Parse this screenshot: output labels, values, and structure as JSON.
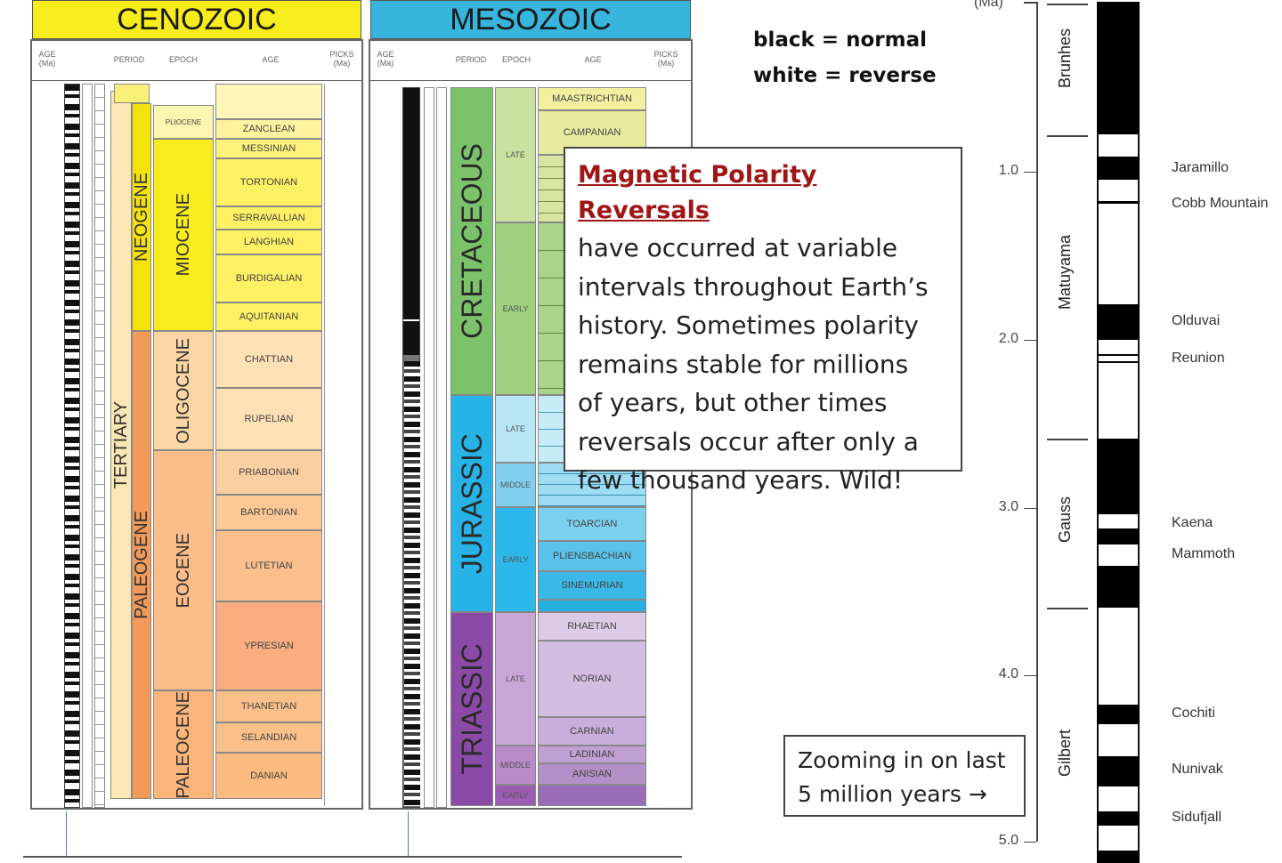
{
  "legend": {
    "line1": "black = normal",
    "line2": "white = reverse"
  },
  "callout": {
    "title": "Magnetic Polarity Reversals",
    "lines": [
      "have occurred at variable",
      "intervals throughout Earth’s",
      "history. Sometimes polarity",
      "remains stable for millions",
      "of years, but other times",
      "reversals occur after only a",
      "few thousand years. Wild!"
    ]
  },
  "zoom_box": {
    "line1": "Zooming in on last",
    "line2": "5 million years →"
  },
  "cenozoic": {
    "header": "CENOZOIC",
    "col_age": "AGE (Ma)",
    "col_period": "PERIOD",
    "col_epoch": "EPOCH",
    "col_age2": "AGE",
    "col_picks": "PICKS (Ma)",
    "periods": [
      "TERTIARY",
      "NEOGENE",
      "PALEOGENE"
    ],
    "epochs": [
      "PLIOCENE",
      "MIOCENE",
      "OLIGOCENE",
      "EOCENE",
      "PALEOCENE"
    ],
    "ages": [
      "ZANCLEAN",
      "MESSINIAN",
      "TORTONIAN",
      "SERRAVALLIAN",
      "LANGHIAN",
      "BURDIGALIAN",
      "AQUITANIAN",
      "CHATTIAN",
      "RUPELIAN",
      "PRIABONIAN",
      "BARTONIAN",
      "LUTETIAN",
      "YPRESIAN",
      "THANETIAN",
      "SELANDIAN",
      "DANIAN"
    ]
  },
  "mesozoic": {
    "header": "MESOZOIC",
    "col_age": "AGE (Ma)",
    "col_period": "PERIOD",
    "col_epoch": "EPOCH",
    "col_age2": "AGE",
    "col_picks": "PICKS (Ma)",
    "periods": [
      "CRETACEOUS",
      "JURASSIC",
      "TRIASSIC"
    ],
    "epochs": [
      "LATE",
      "EARLY",
      "LATE",
      "MIDDLE",
      "EARLY",
      "LATE",
      "MIDDLE",
      "EARLY"
    ],
    "ages": [
      "MAASTRICHTIAN",
      "CAMPANIAN",
      "TOARCIAN",
      "PLIENSBACHIAN",
      "SINEMURIAN",
      "RHAETIAN",
      "NORIAN",
      "CARNIAN",
      "LADINIAN",
      "ANISIAN"
    ]
  },
  "polarity": {
    "axis_unit": "(Ma)",
    "ticks": [
      "1.0",
      "2.0",
      "3.0",
      "4.0",
      "5.0"
    ],
    "chrons": [
      "Brunhes",
      "Matuyama",
      "Gauss",
      "Gilbert"
    ],
    "subchrons": [
      "Jaramillo",
      "Cobb Mountain",
      "Olduvai",
      "Reunion",
      "Kaena",
      "Mammoth",
      "Cochiti",
      "Nunivak",
      "Sidufjall"
    ],
    "colors": {
      "normal": "#000000",
      "reverse": "#ffffff"
    }
  },
  "colors": {
    "cenozoic_header": "#f7ec1c",
    "mesozoic_header": "#37b5dc",
    "cretaceous": "#7cc26a",
    "jurassic": "#27b3e6",
    "triassic": "#8b4aa6",
    "neogene": "#f5e20a",
    "paleogene": "#f29a5a"
  }
}
